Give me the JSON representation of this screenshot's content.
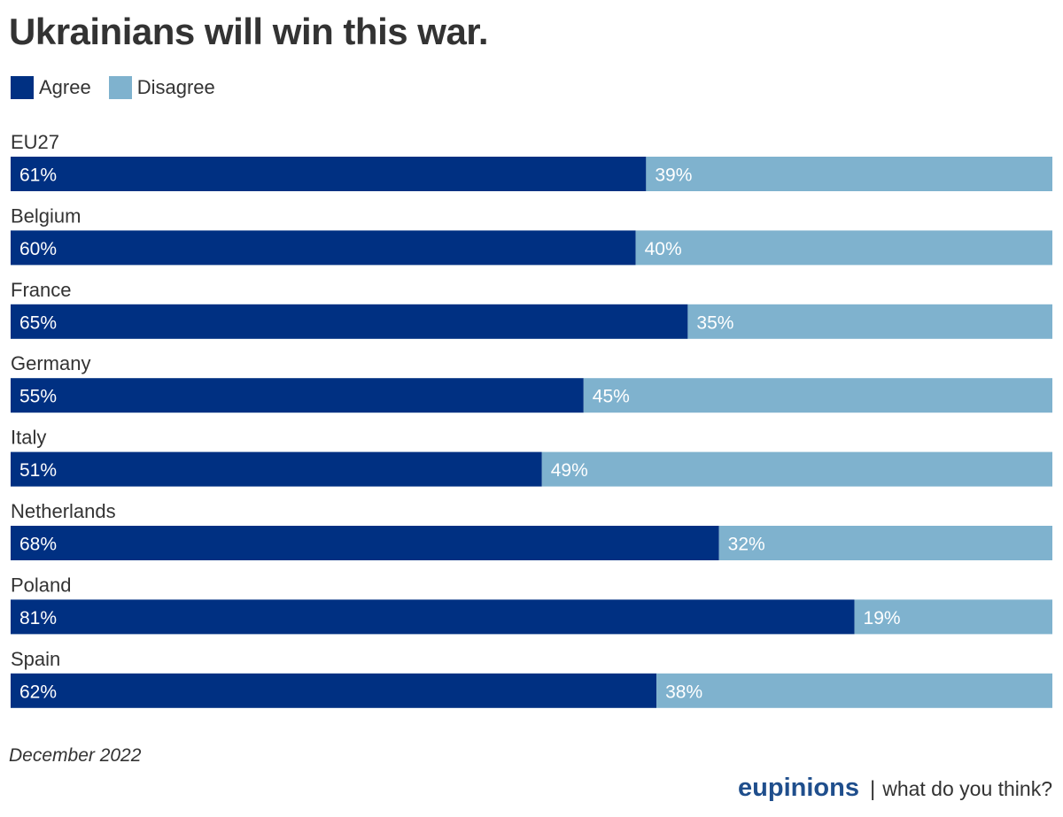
{
  "colors": {
    "agree": "#003082",
    "disagree": "#7fb2ce",
    "brand": "#1f4e8c"
  },
  "chart_data": {
    "type": "bar",
    "orientation": "horizontal",
    "stacked": true,
    "title": "Ukrainians will win this war.",
    "categories": [
      "EU27",
      "Belgium",
      "France",
      "Germany",
      "Italy",
      "Netherlands",
      "Poland",
      "Spain"
    ],
    "series": [
      {
        "name": "Agree",
        "values": [
          61,
          60,
          65,
          55,
          51,
          68,
          81,
          62
        ],
        "labels": [
          "61%",
          "60%",
          "65%",
          "55%",
          "51%",
          "68%",
          "81%",
          "62%"
        ]
      },
      {
        "name": "Disagree",
        "values": [
          39,
          40,
          35,
          45,
          49,
          32,
          19,
          38
        ],
        "labels": [
          "39%",
          "40%",
          "35%",
          "45%",
          "49%",
          "32%",
          "19%",
          "38%"
        ]
      }
    ],
    "xlim": [
      0,
      100
    ],
    "grid": false,
    "legend": "top-left"
  },
  "footnote": "December 2022",
  "branding": {
    "name": "eupinions",
    "separator": "|",
    "tagline": "what do you think?"
  }
}
